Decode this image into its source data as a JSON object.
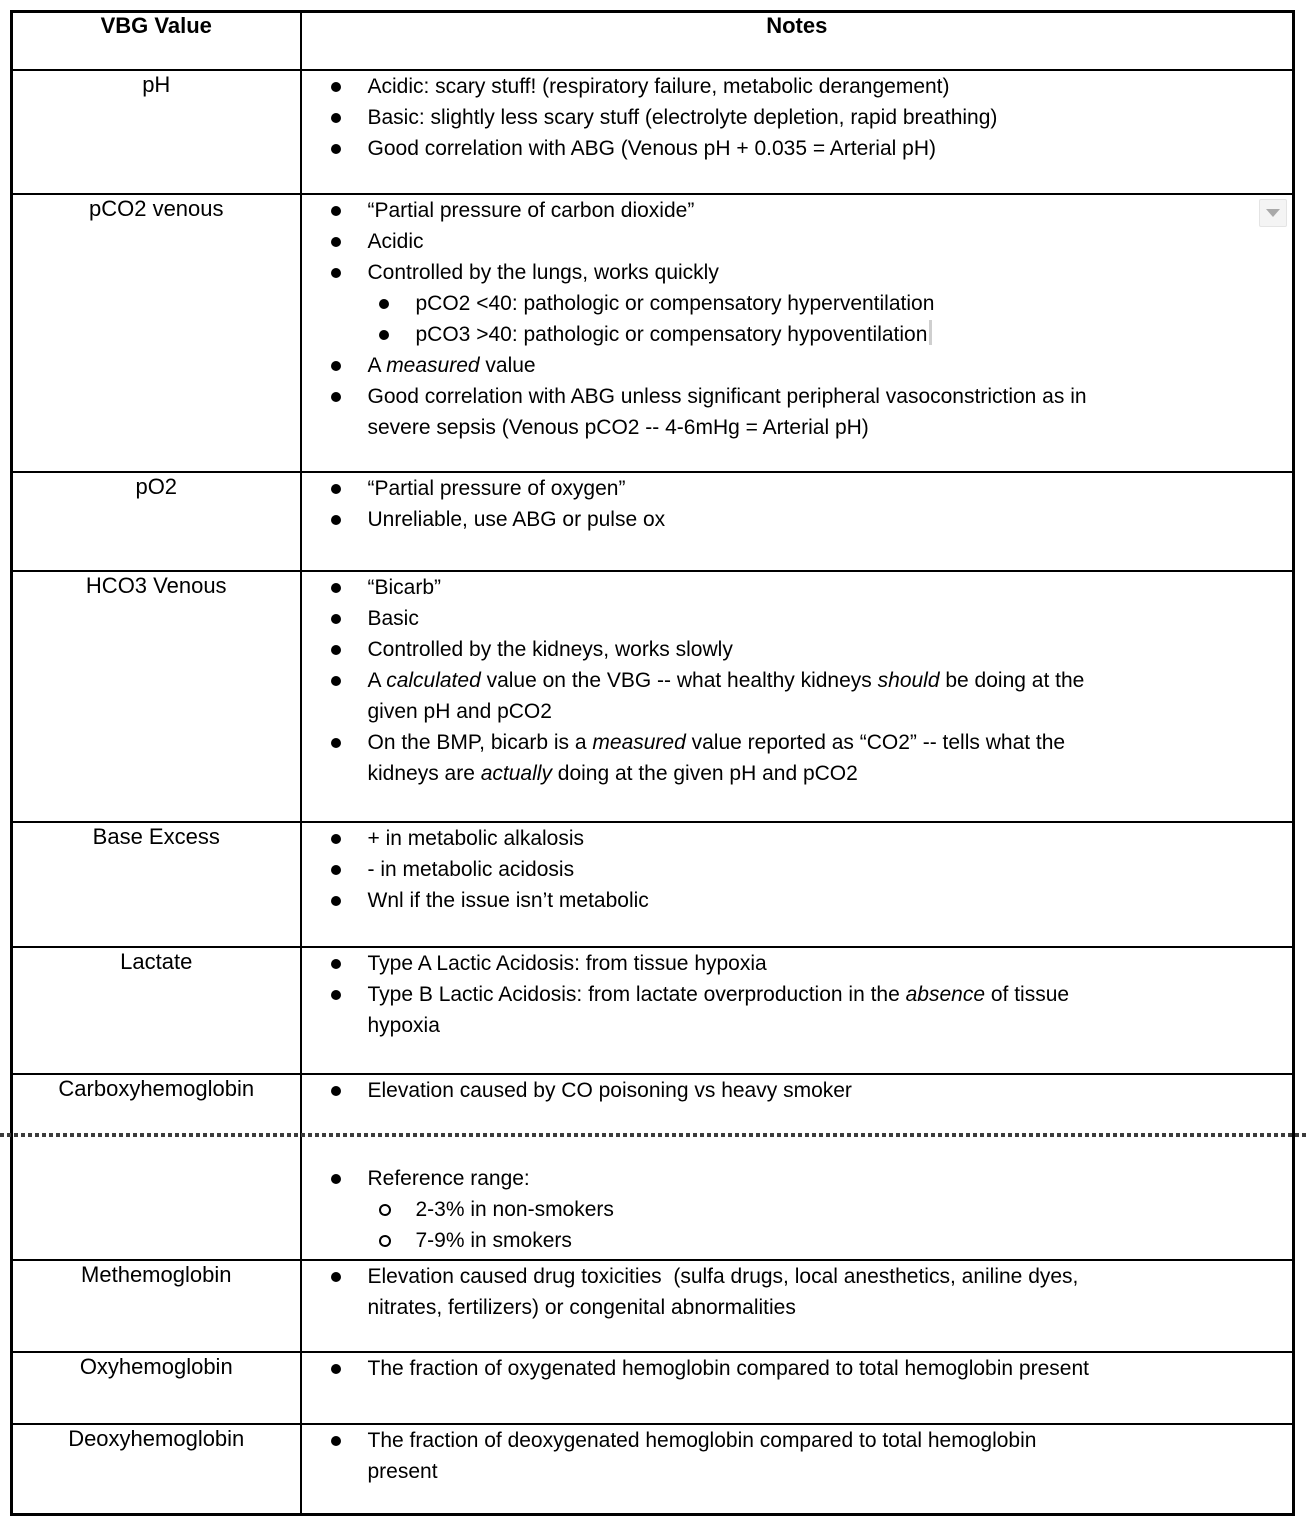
{
  "colors": {
    "text": "#000000",
    "border": "#000000",
    "background": "#ffffff",
    "dropdown_bg": "#f4f4f4",
    "dropdown_arrow": "#a9a9a9",
    "text_cursor": "#cfcfcf",
    "page_break_dash": "#3c3c3c"
  },
  "widgets": {
    "cell_dropdown_icon": "chevron-down",
    "text_cursor_present": true,
    "page_break_between": [
      "Carboxyhemoglobin",
      "(continued)"
    ]
  },
  "table": {
    "header": {
      "col1": "VBG Value",
      "col2": "Notes"
    },
    "rows": [
      {
        "label": "pH",
        "notes": [
          {
            "level": 1,
            "bullet": "disc",
            "segments": [
              {
                "text": "Acidic: scary stuff! (respiratory failure, metabolic derangement)"
              }
            ]
          },
          {
            "level": 1,
            "bullet": "disc",
            "segments": [
              {
                "text": "Basic: slightly less scary stuff (electrolyte depletion, rapid breathing)"
              }
            ]
          },
          {
            "level": 1,
            "bullet": "disc",
            "segments": [
              {
                "text": "Good correlation with ABG (Venous pH + 0.035 = Arterial pH)"
              }
            ]
          }
        ]
      },
      {
        "label": "pCO2 venous",
        "has_dropdown_button": true,
        "notes": [
          {
            "level": 1,
            "bullet": "disc",
            "segments": [
              {
                "text": "“Partial pressure of carbon dioxide”"
              }
            ]
          },
          {
            "level": 1,
            "bullet": "disc",
            "segments": [
              {
                "text": "Acidic"
              }
            ]
          },
          {
            "level": 1,
            "bullet": "disc",
            "segments": [
              {
                "text": "Controlled by the lungs, works quickly"
              }
            ]
          },
          {
            "level": 2,
            "bullet": "disc",
            "segments": [
              {
                "text": "pCO2 <40: pathologic or compensatory hyperventilation"
              }
            ]
          },
          {
            "level": 2,
            "bullet": "disc",
            "caret_after": true,
            "segments": [
              {
                "text": "pCO3 >40: pathologic or compensatory hypoventilation"
              }
            ]
          },
          {
            "level": 1,
            "bullet": "disc",
            "segments": [
              {
                "text": "A "
              },
              {
                "text": "measured",
                "italic": true
              },
              {
                "text": " value"
              }
            ]
          },
          {
            "level": 1,
            "bullet": "disc",
            "segments": [
              {
                "text": "Good correlation with ABG unless significant peripheral vasoconstriction as in\nsevere sepsis (Venous pCO2 -- 4-6mHg = Arterial pH)"
              }
            ]
          }
        ]
      },
      {
        "label": "pO2",
        "notes": [
          {
            "level": 1,
            "bullet": "disc",
            "segments": [
              {
                "text": "“Partial pressure of oxygen”"
              }
            ]
          },
          {
            "level": 1,
            "bullet": "disc",
            "segments": [
              {
                "text": "Unreliable, use ABG or pulse ox"
              }
            ]
          }
        ]
      },
      {
        "label": "HCO3 Venous",
        "notes": [
          {
            "level": 1,
            "bullet": "disc",
            "segments": [
              {
                "text": "“Bicarb”"
              }
            ]
          },
          {
            "level": 1,
            "bullet": "disc",
            "segments": [
              {
                "text": "Basic"
              }
            ]
          },
          {
            "level": 1,
            "bullet": "disc",
            "segments": [
              {
                "text": "Controlled by the kidneys, works slowly"
              }
            ]
          },
          {
            "level": 1,
            "bullet": "disc",
            "segments": [
              {
                "text": "A "
              },
              {
                "text": "calculated",
                "italic": true
              },
              {
                "text": " value on the VBG -- what healthy kidneys "
              },
              {
                "text": "should",
                "italic": true
              },
              {
                "text": " be doing at the\ngiven pH and pCO2"
              }
            ]
          },
          {
            "level": 1,
            "bullet": "disc",
            "segments": [
              {
                "text": "On the BMP, bicarb is a "
              },
              {
                "text": "measured",
                "italic": true
              },
              {
                "text": " value reported as “CO2” -- tells what the\nkidneys are "
              },
              {
                "text": "actually",
                "italic": true
              },
              {
                "text": " doing at the given pH and pCO2"
              }
            ]
          }
        ]
      },
      {
        "label": "Base Excess",
        "notes": [
          {
            "level": 1,
            "bullet": "disc",
            "segments": [
              {
                "text": "+ in metabolic alkalosis"
              }
            ]
          },
          {
            "level": 1,
            "bullet": "disc",
            "segments": [
              {
                "text": "- in metabolic acidosis"
              }
            ]
          },
          {
            "level": 1,
            "bullet": "disc",
            "segments": [
              {
                "text": "Wnl if the issue isn’t metabolic"
              }
            ]
          }
        ]
      },
      {
        "label": "Lactate",
        "notes": [
          {
            "level": 1,
            "bullet": "disc",
            "segments": [
              {
                "text": "Type A Lactic Acidosis: from tissue hypoxia"
              }
            ]
          },
          {
            "level": 1,
            "bullet": "disc",
            "segments": [
              {
                "text": "Type B Lactic Acidosis: from lactate overproduction in the "
              },
              {
                "text": "absence",
                "italic": true
              },
              {
                "text": " of tissue\nhypoxia"
              }
            ]
          }
        ]
      },
      {
        "label": "Carboxyhemoglobin",
        "notes": [
          {
            "level": 1,
            "bullet": "disc",
            "segments": [
              {
                "text": "Elevation caused by CO poisoning vs heavy smoker"
              }
            ]
          }
        ]
      },
      {
        "label": "",
        "continues_previous": true,
        "notes": [
          {
            "level": 1,
            "bullet": "disc",
            "segments": [
              {
                "text": "Reference range:"
              }
            ]
          },
          {
            "level": 2,
            "bullet": "circle",
            "segments": [
              {
                "text": "2-3% in non-smokers"
              }
            ]
          },
          {
            "level": 2,
            "bullet": "circle",
            "segments": [
              {
                "text": "7-9% in smokers"
              }
            ]
          }
        ]
      },
      {
        "label": "Methemoglobin",
        "notes": [
          {
            "level": 1,
            "bullet": "disc",
            "segments": [
              {
                "text": "Elevation caused drug toxicities  (sulfa drugs, local anesthetics, aniline dyes,\nnitrates, fertilizers) or congenital abnormalities"
              }
            ]
          }
        ]
      },
      {
        "label": "Oxyhemoglobin",
        "notes": [
          {
            "level": 1,
            "bullet": "disc",
            "segments": [
              {
                "text": "The fraction of oxygenated hemoglobin compared to total hemoglobin present"
              }
            ]
          }
        ]
      },
      {
        "label": "Deoxyhemoglobin",
        "notes": [
          {
            "level": 1,
            "bullet": "disc",
            "segments": [
              {
                "text": "The fraction of deoxygenated hemoglobin compared to total hemoglobin\npresent"
              }
            ]
          }
        ]
      }
    ]
  }
}
